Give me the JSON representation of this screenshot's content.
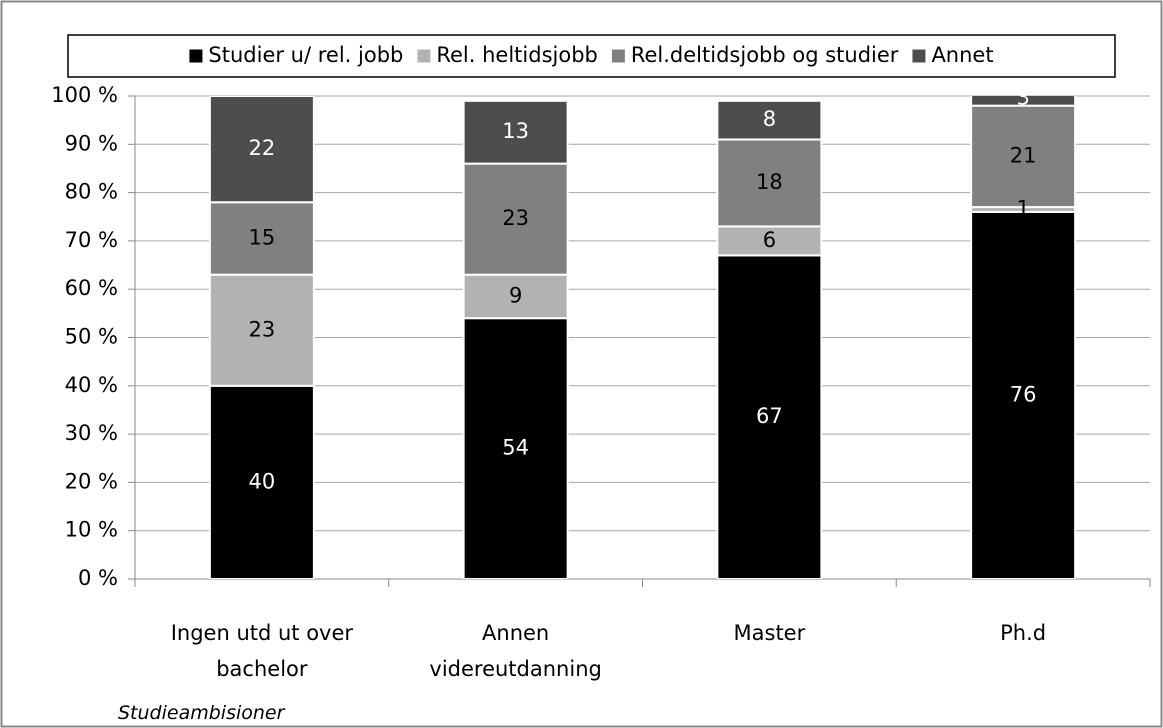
{
  "chart_data": {
    "type": "stacked_bar",
    "x_label": "Studieambisioner",
    "categories": [
      "Ingen utd ut over\nbachelor",
      "Annen\nvidereutdanning",
      "Master",
      "Ph.d"
    ],
    "series": [
      {
        "name": "Studier u/ rel. jobb",
        "color": "#000000",
        "label_color": "#ffffff",
        "values": [
          40,
          54,
          67,
          76
        ]
      },
      {
        "name": "Rel. heltidsjobb",
        "color": "#b2b2b2",
        "label_color": "#000000",
        "values": [
          23,
          9,
          6,
          1
        ]
      },
      {
        "name": "Rel.deltidsjobb og studier",
        "color": "#808080",
        "label_color": "#000000",
        "values": [
          15,
          23,
          18,
          21
        ]
      },
      {
        "name": "Annet",
        "color": "#4d4d4d",
        "label_color": "#ffffff",
        "values": [
          22,
          13,
          8,
          3
        ]
      }
    ],
    "ylim": [
      0,
      100
    ],
    "yticks": [
      {
        "value": 0,
        "label": "0 %"
      },
      {
        "value": 10,
        "label": "10 %"
      },
      {
        "value": 20,
        "label": "20 %"
      },
      {
        "value": 30,
        "label": "30 %"
      },
      {
        "value": 40,
        "label": "40 %"
      },
      {
        "value": 50,
        "label": "50 %"
      },
      {
        "value": 60,
        "label": "60 %"
      },
      {
        "value": 70,
        "label": "70 %"
      },
      {
        "value": 80,
        "label": "80 %"
      },
      {
        "value": 90,
        "label": "90 %"
      },
      {
        "value": 100,
        "label": "100 %"
      }
    ],
    "grid": true,
    "legend": "top"
  }
}
